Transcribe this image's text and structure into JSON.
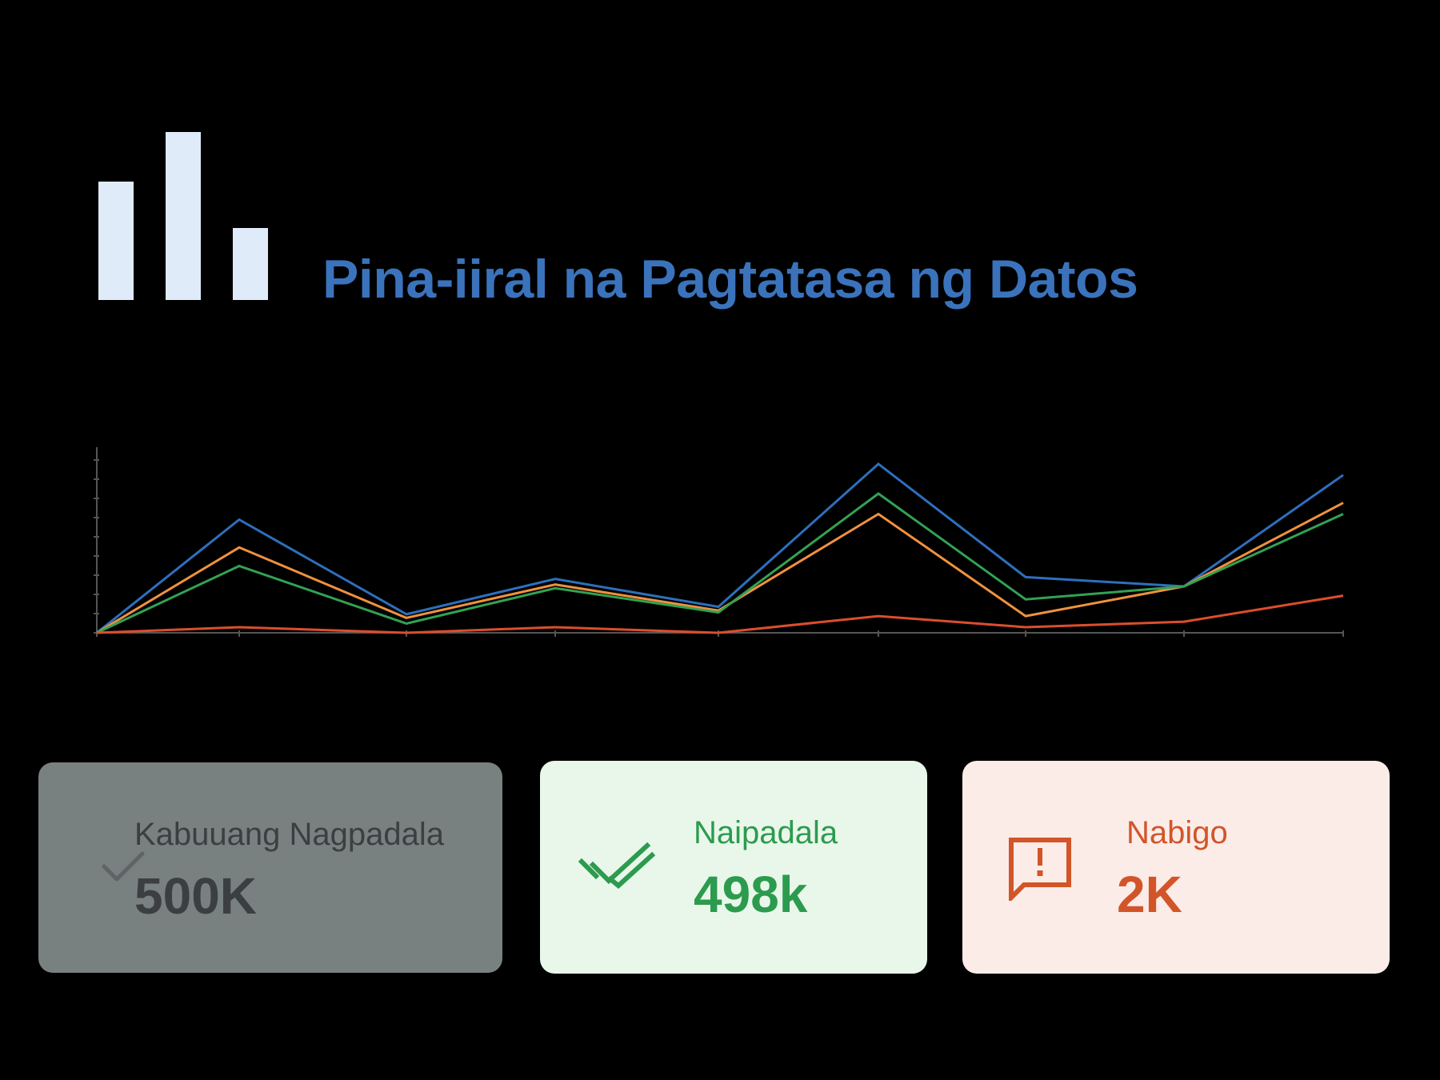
{
  "header": {
    "title": "Pina-iiral na Pagtatasa ng Datos",
    "logo_icon": "bar-chart-icon"
  },
  "chart_data": {
    "type": "line",
    "title": "",
    "xlabel": "",
    "ylabel": "",
    "x": [
      0,
      1,
      2,
      3,
      4,
      5,
      6,
      7,
      8
    ],
    "ylim": [
      0,
      100
    ],
    "grid": false,
    "legend": "none",
    "series": [
      {
        "color": "#2D6FBE",
        "values": [
          0,
          61,
          10,
          29,
          14,
          91,
          30,
          25,
          85
        ]
      },
      {
        "color": "#F0913E",
        "values": [
          0,
          46,
          8,
          26,
          12,
          64,
          9,
          25,
          70
        ]
      },
      {
        "color": "#32A254",
        "values": [
          0,
          36,
          5,
          24,
          11,
          75,
          18,
          25,
          64
        ]
      },
      {
        "color": "#DB4E2E",
        "values": [
          0,
          3,
          0,
          3,
          0,
          9,
          3,
          6,
          20
        ]
      }
    ]
  },
  "cards": {
    "total": {
      "label": "Kabuuang Nagpadala",
      "value": "500K",
      "icon": "check-icon",
      "color": "#3B3F41"
    },
    "sent": {
      "label": "Naipadala",
      "value": "498k",
      "icon": "double-check-icon",
      "color": "#2C9B4E"
    },
    "failed": {
      "label": "Nabigo",
      "value": "2K",
      "icon": "alert-message-icon",
      "color": "#D25529"
    }
  }
}
